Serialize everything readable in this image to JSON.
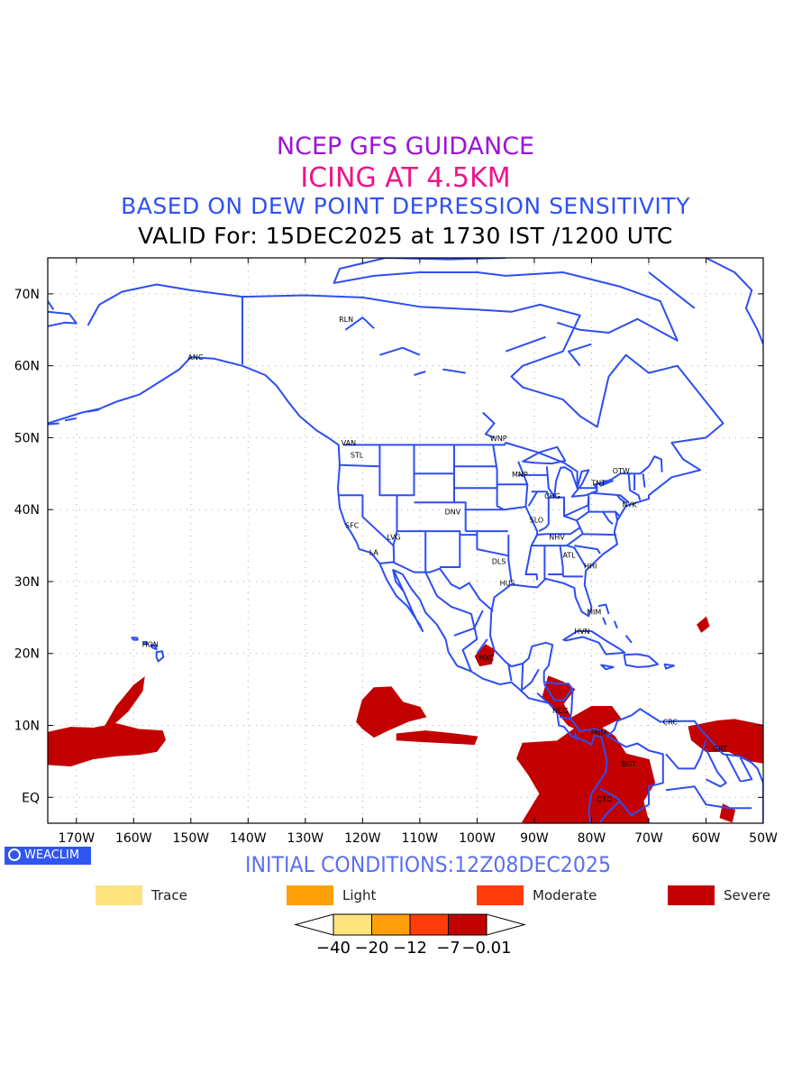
{
  "titles": {
    "line1": "NCEP GFS GUIDANCE",
    "line2": "ICING AT 4.5KM",
    "line3": "BASED ON DEW POINT DEPRESSION SENSITIVITY",
    "line4": "VALID For: 15DEC2025 at 1730 IST /1200 UTC"
  },
  "axes": {
    "lat_labels": [
      "70N",
      "60N",
      "50N",
      "40N",
      "30N",
      "20N",
      "10N",
      "EQ"
    ],
    "lon_labels": [
      "170W",
      "160W",
      "150W",
      "140W",
      "130W",
      "120W",
      "110W",
      "100W",
      "90W",
      "80W",
      "70W",
      "60W",
      "50W"
    ]
  },
  "cities": [
    {
      "name": "RLN",
      "lon": -123.5,
      "lat": 66.5
    },
    {
      "name": "ANC",
      "lon": -149.9,
      "lat": 61.2
    },
    {
      "name": "VAN",
      "lon": -123.1,
      "lat": 49.3
    },
    {
      "name": "STL",
      "lon": -121.5,
      "lat": 47.6
    },
    {
      "name": "WNP",
      "lon": -97.1,
      "lat": 49.9
    },
    {
      "name": "MNP",
      "lon": -93.3,
      "lat": 44.9
    },
    {
      "name": "OTW",
      "lon": -75.7,
      "lat": 45.4
    },
    {
      "name": "TNT",
      "lon": -79.4,
      "lat": 43.7
    },
    {
      "name": "CHG",
      "lon": -87.6,
      "lat": 41.9
    },
    {
      "name": "NYK",
      "lon": -74.0,
      "lat": 40.7
    },
    {
      "name": "DNV",
      "lon": -105.0,
      "lat": 39.7
    },
    {
      "name": "SFC",
      "lon": -122.4,
      "lat": 37.8
    },
    {
      "name": "SLO",
      "lon": -90.2,
      "lat": 38.6
    },
    {
      "name": "LVG",
      "lon": -115.1,
      "lat": 36.2
    },
    {
      "name": "NHV",
      "lon": -86.8,
      "lat": 36.2
    },
    {
      "name": "LA",
      "lon": -118.2,
      "lat": 34.1
    },
    {
      "name": "ATL",
      "lon": -84.4,
      "lat": 33.7
    },
    {
      "name": "DLS",
      "lon": -96.8,
      "lat": 32.8
    },
    {
      "name": "HHI",
      "lon": -80.7,
      "lat": 32.2
    },
    {
      "name": "HUS",
      "lon": -95.4,
      "lat": 29.8
    },
    {
      "name": "MIM",
      "lon": -80.2,
      "lat": 25.8
    },
    {
      "name": "HVN",
      "lon": -82.4,
      "lat": 23.1
    },
    {
      "name": "HON",
      "lon": -157.9,
      "lat": 21.3
    },
    {
      "name": "MXC",
      "lon": -99.1,
      "lat": 19.4
    },
    {
      "name": "NCG",
      "lon": -86.2,
      "lat": 12.1
    },
    {
      "name": "CRC",
      "lon": -66.9,
      "lat": 10.5
    },
    {
      "name": "PNM",
      "lon": -79.5,
      "lat": 9.0
    },
    {
      "name": "GRT",
      "lon": -58.2,
      "lat": 6.8
    },
    {
      "name": "BGT",
      "lon": -74.1,
      "lat": 4.7
    },
    {
      "name": "QTO",
      "lon": -78.5,
      "lat": -0.2
    }
  ],
  "severe_regions": [
    {
      "name": "central-pacific-west",
      "points": [
        [
          -175,
          9
        ],
        [
          -171,
          9.7
        ],
        [
          -167,
          9.6
        ],
        [
          -163,
          10.2
        ],
        [
          -159,
          9.4
        ],
        [
          -155,
          9.2
        ],
        [
          -154.5,
          8
        ],
        [
          -156,
          6.4
        ],
        [
          -159,
          6
        ],
        [
          -163,
          5.8
        ],
        [
          -167,
          5.4
        ],
        [
          -171,
          4.4
        ],
        [
          -175,
          4.6
        ]
      ]
    },
    {
      "name": "central-pacific-streak",
      "points": [
        [
          -165,
          9.8
        ],
        [
          -163,
          12.6
        ],
        [
          -160,
          15.5
        ],
        [
          -158.2,
          16.6
        ],
        [
          -158.5,
          14.8
        ],
        [
          -161,
          12
        ],
        [
          -163.5,
          10.2
        ]
      ]
    },
    {
      "name": "eastern-pacific-west",
      "points": [
        [
          -121,
          10.5
        ],
        [
          -120,
          13.5
        ],
        [
          -118,
          15.2
        ],
        [
          -115,
          15.3
        ],
        [
          -113,
          13.2
        ],
        [
          -110,
          12.5
        ],
        [
          -109,
          11.2
        ],
        [
          -112,
          10.6
        ],
        [
          -116,
          9.2
        ],
        [
          -118,
          8.4
        ],
        [
          -120,
          9.6
        ]
      ]
    },
    {
      "name": "eastern-pacific-dots",
      "points": [
        [
          -114,
          8.8
        ],
        [
          -109,
          9.2
        ],
        [
          -104,
          8.8
        ],
        [
          -100,
          8.4
        ],
        [
          -100.5,
          7.4
        ],
        [
          -105,
          7.6
        ],
        [
          -110,
          7.8
        ],
        [
          -114,
          8
        ]
      ]
    },
    {
      "name": "mexico-patch",
      "points": [
        [
          -98.5,
          21.2
        ],
        [
          -97,
          20.5
        ],
        [
          -97.5,
          18.6
        ],
        [
          -99.5,
          18.3
        ],
        [
          -100.3,
          19.6
        ]
      ]
    },
    {
      "name": "central-america",
      "points": [
        [
          -87.5,
          16.8
        ],
        [
          -85,
          16
        ],
        [
          -83,
          15
        ],
        [
          -85,
          13
        ],
        [
          -83.5,
          11
        ],
        [
          -80,
          12.6
        ],
        [
          -76.5,
          12.6
        ],
        [
          -75,
          11
        ],
        [
          -78,
          9.8
        ],
        [
          -81,
          9
        ],
        [
          -84,
          10
        ],
        [
          -86.5,
          12.4
        ],
        [
          -88.5,
          14
        ]
      ]
    },
    {
      "name": "eastern-pacific-south",
      "points": [
        [
          -92,
          7.5
        ],
        [
          -86,
          7.8
        ],
        [
          -83,
          9.5
        ],
        [
          -79,
          10
        ],
        [
          -76,
          8.5
        ],
        [
          -74,
          6
        ],
        [
          -70,
          5.2
        ],
        [
          -69,
          2
        ],
        [
          -71,
          -0.5
        ],
        [
          -70,
          -3.6
        ],
        [
          -74,
          -3.6
        ],
        [
          -80,
          -3.6
        ],
        [
          -88,
          -3.6
        ],
        [
          -92,
          -3.4
        ],
        [
          -89,
          0.5
        ],
        [
          -91,
          3.2
        ],
        [
          -93,
          5.4
        ]
      ]
    },
    {
      "name": "venezuela-guyana",
      "points": [
        [
          -63,
          9.8
        ],
        [
          -58,
          10.6
        ],
        [
          -55,
          10.8
        ],
        [
          -50,
          10
        ],
        [
          -50,
          4.8
        ],
        [
          -53,
          5.2
        ],
        [
          -56,
          6.4
        ],
        [
          -60,
          6.4
        ],
        [
          -62.5,
          8
        ]
      ]
    },
    {
      "name": "lesser-antilles",
      "points": [
        [
          -61.5,
          24
        ],
        [
          -60,
          25
        ],
        [
          -59.5,
          23.8
        ],
        [
          -60.8,
          23
        ]
      ]
    },
    {
      "name": "amazon-east",
      "points": [
        [
          -57,
          -1
        ],
        [
          -55,
          -1.8
        ],
        [
          -55.5,
          -3.4
        ],
        [
          -57.5,
          -2.8
        ]
      ]
    }
  ],
  "footer": {
    "badge": "WEACLIM",
    "initial_conditions": "INITIAL CONDITIONS:12Z08DEC2025"
  },
  "legend": [
    {
      "label": "Trace",
      "color": "#fde47f"
    },
    {
      "label": "Light",
      "color": "#ff9f0a"
    },
    {
      "label": "Moderate",
      "color": "#ff3c0a"
    },
    {
      "label": "Severe",
      "color": "#c20000"
    }
  ],
  "colorbar": {
    "colors": [
      "#fde47f",
      "#ff9f0a",
      "#ff3c0a",
      "#c20000"
    ],
    "labels": [
      "−40",
      "−20",
      "−12",
      "−7",
      "−0.01"
    ]
  }
}
